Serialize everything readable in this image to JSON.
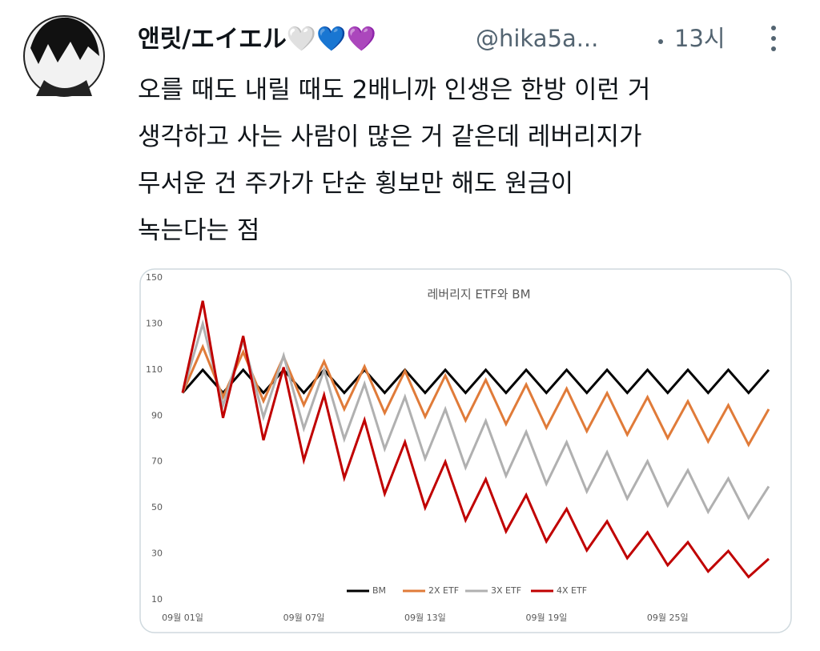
{
  "tweet": {
    "author_name": "앤릿/エイエル🤍💙💜",
    "handle": "@hika5a...",
    "time": "13시",
    "text_lines": [
      "오를 때도 내릴 때도 2배니까 인생은 한방 이런 거",
      "생각하고 사는 사람이 많은 거 같은데 레버리지가",
      "무서운 건 주가가 단순 횡보만 해도 원금이",
      "녹는다는 점"
    ]
  },
  "chart_data": {
    "type": "line",
    "title": "레버리지 ETF와 BM",
    "categories": [
      "09월 01일",
      null,
      null,
      null,
      null,
      null,
      "09월 07일",
      null,
      null,
      null,
      null,
      null,
      "09월 13일",
      null,
      null,
      null,
      null,
      null,
      "09월 19일",
      null,
      null,
      null,
      null,
      null,
      "09월 25일",
      null,
      null,
      null,
      null,
      null
    ],
    "series": [
      {
        "name": "BM",
        "color": "#000000",
        "values": [
          100,
          110,
          100,
          110,
          100,
          110,
          100,
          110,
          100,
          110,
          100,
          110,
          100,
          110,
          100,
          110,
          100,
          110,
          100,
          110,
          100,
          110,
          100,
          110,
          100,
          110,
          100,
          110,
          100,
          110
        ]
      },
      {
        "name": "2X ETF",
        "color": "#e07b39",
        "values": [
          100,
          120,
          98.2,
          117.8,
          96.4,
          115.7,
          94.7,
          113.6,
          92.9,
          111.5,
          91.2,
          109.5,
          89.6,
          107.5,
          88.0,
          105.6,
          86.4,
          103.6,
          84.8,
          101.8,
          83.3,
          99.9,
          81.8,
          98.1,
          80.3,
          96.3,
          78.8,
          94.6,
          77.4,
          92.9
        ]
      },
      {
        "name": "3X ETF",
        "color": "#b0b0b0",
        "values": [
          100,
          130,
          94.5,
          122.9,
          89.4,
          116.2,
          84.5,
          109.9,
          79.9,
          103.9,
          75.6,
          98.2,
          71.4,
          92.9,
          67.5,
          87.8,
          63.9,
          83.0,
          60.4,
          78.5,
          57.1,
          74.2,
          54.0,
          70.2,
          51.0,
          66.3,
          48.2,
          62.7,
          45.6,
          59.3
        ]
      },
      {
        "name": "4X ETF",
        "color": "#c00000",
        "values": [
          100,
          140,
          89.1,
          124.7,
          79.4,
          111.1,
          70.7,
          99.0,
          63.0,
          88.2,
          56.1,
          78.6,
          50.0,
          70.0,
          44.6,
          62.4,
          39.7,
          55.6,
          35.4,
          49.5,
          31.5,
          44.1,
          28.1,
          39.3,
          25.0,
          35.0,
          22.3,
          31.2,
          19.9,
          27.8
        ]
      }
    ],
    "ylim": [
      10,
      150
    ],
    "yticks": [
      10,
      30,
      50,
      70,
      90,
      110,
      130,
      150
    ],
    "grid": false,
    "legend": "bottom"
  }
}
